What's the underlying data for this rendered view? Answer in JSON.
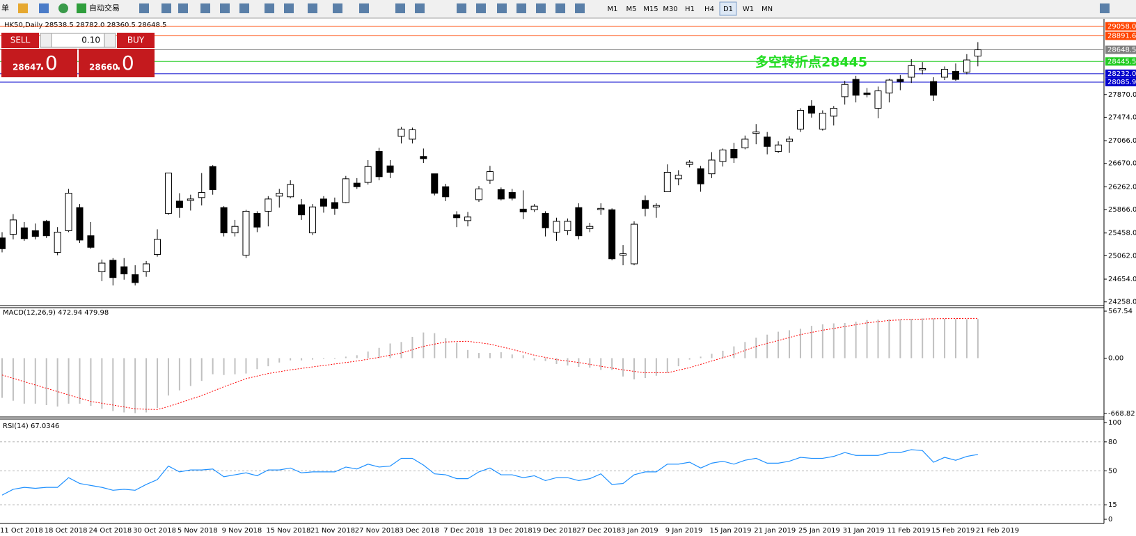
{
  "toolbar": {
    "menu": "单",
    "auto_trade": "自动交易",
    "timeframes": [
      "M1",
      "M5",
      "M15",
      "M30",
      "H1",
      "H4",
      "D1",
      "W1",
      "MN"
    ],
    "active_timeframe": "D1"
  },
  "trade_panel": {
    "sell": "SELL",
    "lot": "0.10",
    "buy": "BUY",
    "bid_main": "28647",
    "bid_frac": ".0",
    "ask_main": "28660",
    "ask_frac": ".0"
  },
  "chart_data": [
    {
      "type": "candlestick",
      "title": "HK50,Daily  28538.5 28782.0 28360.5 28648.5",
      "up_color": "#ffffff",
      "down_color": "#000000",
      "categories": [
        "11 Oct 2018",
        null,
        null,
        null,
        "18 Oct 2018",
        null,
        null,
        null,
        "24 Oct 2018",
        null,
        null,
        null,
        "30 Oct 2018",
        null,
        null,
        null,
        "5 Nov 2018",
        null,
        null,
        null,
        "9 Nov 2018",
        null,
        null,
        null,
        "15 Nov 2018",
        null,
        null,
        null,
        "21 Nov 2018",
        null,
        null,
        null,
        "27 Nov 2018",
        null,
        null,
        null,
        "3 Dec 2018",
        null,
        null,
        null,
        "7 Dec 2018",
        null,
        null,
        null,
        "13 Dec 2018",
        null,
        null,
        null,
        "19 Dec 2018",
        null,
        null,
        null,
        "27 Dec 2018",
        null,
        null,
        null,
        "3 Jan 2019",
        null,
        null,
        null,
        "9 Jan 2019",
        null,
        null,
        null,
        "15 Jan 2019",
        null,
        null,
        null,
        "21 Jan 2019",
        null,
        null,
        null,
        "25 Jan 2019",
        null,
        null,
        null,
        "31 Jan 2019",
        null,
        null,
        null,
        "11 Feb 2019",
        null,
        null,
        null,
        "15 Feb 2019",
        null,
        null,
        null,
        "21 Feb 2019"
      ],
      "open": [
        25372,
        25435,
        25548,
        25498,
        25661,
        25121,
        25498,
        25900,
        25410,
        24783,
        24983,
        24870,
        24732,
        24783,
        25084,
        25799,
        26013,
        26025,
        26075,
        26615,
        25900,
        25460,
        25071,
        25799,
        25837,
        26100,
        26088,
        25950,
        25460,
        26050,
        25988,
        25988,
        26326,
        26339,
        26878,
        26627,
        27142,
        27092,
        26791,
        26489,
        26264,
        25774,
        25674,
        26038,
        26376,
        26213,
        26163,
        25874,
        25862,
        25799,
        25473,
        25498,
        25900,
        25536,
        25862,
        25862,
        25071,
        24921,
        26025,
        25912,
        26176,
        26402,
        26653,
        26577,
        26489,
        26703,
        26916,
        26941,
        27192,
        27129,
        26878,
        27054,
        27268,
        27669,
        27268,
        27493,
        27832,
        28133,
        27895,
        27631,
        27895,
        28133,
        28171,
        28297,
        28096,
        28171,
        28272,
        28259,
        28538.5
      ],
      "high": [
        25473,
        25787,
        25649,
        25623,
        25686,
        25561,
        26226,
        25962,
        25649,
        24996,
        25021,
        25021,
        24896,
        24971,
        25523,
        26502,
        26151,
        26125,
        26502,
        26640,
        25925,
        25686,
        25862,
        25837,
        26100,
        26226,
        26376,
        26050,
        25962,
        26100,
        26075,
        26452,
        26414,
        26728,
        26941,
        26728,
        27305,
        27293,
        26929,
        26489,
        26314,
        25837,
        25824,
        26276,
        26627,
        26251,
        26226,
        26201,
        25962,
        25837,
        25724,
        25711,
        25975,
        25636,
        25975,
        25887,
        25247,
        25661,
        26113,
        25975,
        26653,
        26552,
        26728,
        26627,
        26866,
        26929,
        27029,
        27155,
        27355,
        27217,
        27054,
        27142,
        27631,
        27770,
        27594,
        27669,
        28108,
        28196,
        27983,
        28008,
        28146,
        28209,
        28485,
        28435,
        28171,
        28359,
        28410,
        28573,
        28782
      ],
      "low": [
        25121,
        25347,
        25322,
        25347,
        25372,
        25071,
        25473,
        25285,
        25184,
        24619,
        24544,
        24645,
        24544,
        24695,
        25046,
        25774,
        25724,
        25849,
        25937,
        26125,
        25398,
        25398,
        25021,
        25473,
        25573,
        25900,
        26063,
        25686,
        25423,
        25812,
        25774,
        25975,
        26226,
        26301,
        26376,
        26414,
        27017,
        27017,
        26678,
        26113,
        26013,
        25561,
        25573,
        26000,
        26314,
        26025,
        26025,
        25699,
        25824,
        25398,
        25322,
        25423,
        25347,
        25473,
        25774,
        24983,
        24896,
        24896,
        25749,
        25724,
        26176,
        26289,
        26602,
        26176,
        26414,
        26615,
        26678,
        26916,
        27004,
        26828,
        26853,
        26853,
        27217,
        27468,
        27242,
        27330,
        27694,
        27732,
        27820,
        27456,
        27732,
        27945,
        28071,
        28221,
        27757,
        28121,
        28108,
        28221,
        28360.5
      ],
      "close": [
        25184,
        25686,
        25360,
        25398,
        25410,
        25473,
        26151,
        25335,
        25209,
        24933,
        24682,
        24745,
        24594,
        24921,
        25347,
        26502,
        25900,
        26050,
        26163,
        26213,
        25460,
        25573,
        25837,
        25561,
        26050,
        26151,
        26301,
        25774,
        25912,
        25925,
        25887,
        26402,
        26264,
        26615,
        26439,
        26515,
        27268,
        27255,
        26753,
        26151,
        26088,
        25724,
        25736,
        26226,
        26527,
        26050,
        26063,
        25824,
        25925,
        25548,
        25661,
        25661,
        25410,
        25573,
        25887,
        25009,
        25096,
        25611,
        25887,
        25937,
        26515,
        26464,
        26690,
        26314,
        26728,
        26904,
        26766,
        27092,
        27217,
        26966,
        26991,
        27092,
        27594,
        27544,
        27544,
        27631,
        28046,
        27857,
        27870,
        27933,
        28121,
        28096,
        28372,
        28322,
        27857,
        28309,
        28133,
        28472,
        28648.5
      ],
      "ylim": [
        24230,
        29140
      ],
      "yticks": [
        {
          "value": 27870,
          "label": "27870.0"
        },
        {
          "value": 27474,
          "label": "27474.0"
        },
        {
          "value": 27066,
          "label": "27066.0"
        },
        {
          "value": 26670,
          "label": "26670.0"
        },
        {
          "value": 26262,
          "label": "26262.0"
        },
        {
          "value": 25866,
          "label": "25866.0"
        },
        {
          "value": 25458,
          "label": "25458.0"
        },
        {
          "value": 25062,
          "label": "25062.0"
        },
        {
          "value": 24654,
          "label": "24654.0"
        },
        {
          "value": 24258,
          "label": "24258.0"
        }
      ],
      "hlines": [
        {
          "value": 29058,
          "label": "29058.0",
          "color": "#ff4500"
        },
        {
          "value": 28891.6,
          "label": "28891.6",
          "color": "#ff4500"
        },
        {
          "value": 28648.5,
          "label": "28648.5",
          "color": "#808080"
        },
        {
          "value": 28445.5,
          "label": "28445.5",
          "color": "#22cc22"
        },
        {
          "value": 28232,
          "label": "28232.0",
          "color": "#0000cc"
        },
        {
          "value": 28085.9,
          "label": "28085.9",
          "color": "#0000cc"
        }
      ],
      "annotation": "多空转折点28445",
      "annotation_color": "#22dd22"
    },
    {
      "type": "macd",
      "title": "MACD(12,26,9) 472.94 479.98",
      "histogram_color": "#c0c0c0",
      "signal_color": "#ff0000",
      "histogram": [
        -480,
        -515,
        -550,
        -550,
        -568,
        -585,
        -550,
        -550,
        -577,
        -612,
        -639,
        -656,
        -665,
        -656,
        -603,
        -452,
        -390,
        -337,
        -275,
        -195,
        -204,
        -195,
        -186,
        -133,
        -98,
        -53,
        -27,
        -27,
        -18,
        -9,
        -9,
        18,
        35,
        80,
        124,
        177,
        195,
        257,
        310,
        302,
        240,
        186,
        98,
        62,
        62,
        71,
        44,
        35,
        -27,
        -35,
        -71,
        -89,
        -106,
        -115,
        -142,
        -142,
        -222,
        -257,
        -240,
        -213,
        -177,
        -98,
        -18,
        18,
        53,
        89,
        142,
        195,
        248,
        284,
        319,
        337,
        355,
        390,
        408,
        420,
        425,
        440,
        460,
        465,
        470,
        470,
        475,
        480,
        480,
        475,
        472,
        470,
        472.94
      ],
      "signal": [
        -204,
        -244,
        -284,
        -324,
        -364,
        -404,
        -444,
        -484,
        -523,
        -545,
        -567,
        -590,
        -612,
        -618,
        -621,
        -585,
        -541,
        -497,
        -452,
        -399,
        -346,
        -297,
        -248,
        -217,
        -186,
        -164,
        -142,
        -124,
        -106,
        -89,
        -71,
        -53,
        -35,
        -13,
        9,
        35,
        62,
        102,
        142,
        169,
        195,
        200,
        204,
        187,
        169,
        138,
        106,
        71,
        35,
        9,
        -18,
        -35,
        -53,
        -75,
        -98,
        -120,
        -142,
        -160,
        -177,
        -177,
        -177,
        -146,
        -115,
        -75,
        -35,
        5,
        44,
        93,
        142,
        178,
        213,
        249,
        284,
        311,
        337,
        359,
        381,
        404,
        426,
        441,
        455,
        462,
        468,
        472,
        476,
        478,
        479,
        480,
        479.98
      ],
      "ylim": [
        -668.82,
        567.54
      ],
      "yticks": [
        567.54,
        {
          "value": 0,
          "label": "0.00"
        },
        -668.82
      ]
    },
    {
      "type": "line",
      "title": "RSI(14) 67.0346",
      "color": "#1e90ff",
      "levels": [
        80,
        50,
        15
      ],
      "values": [
        25,
        31,
        33,
        32,
        33,
        33,
        43,
        37,
        35,
        33,
        30,
        31,
        30,
        36,
        41,
        55,
        49,
        51,
        51,
        52,
        44,
        46,
        48,
        45,
        51,
        51,
        53,
        48,
        49,
        49,
        49,
        54,
        52,
        57,
        54,
        55,
        63,
        63,
        56,
        47,
        46,
        42,
        42,
        49,
        53,
        46,
        46,
        43,
        45,
        40,
        43,
        43,
        40,
        42,
        47,
        36,
        37,
        46,
        49,
        49,
        57,
        57,
        59,
        53,
        58,
        60,
        57,
        61,
        63,
        58,
        58,
        60,
        64,
        63,
        63,
        65,
        69,
        66,
        66,
        66,
        69,
        69,
        72,
        71,
        59,
        64,
        61,
        65,
        67.0346
      ],
      "ylim": [
        0,
        100
      ],
      "yticks": [
        100,
        80,
        50,
        15,
        0
      ]
    }
  ]
}
